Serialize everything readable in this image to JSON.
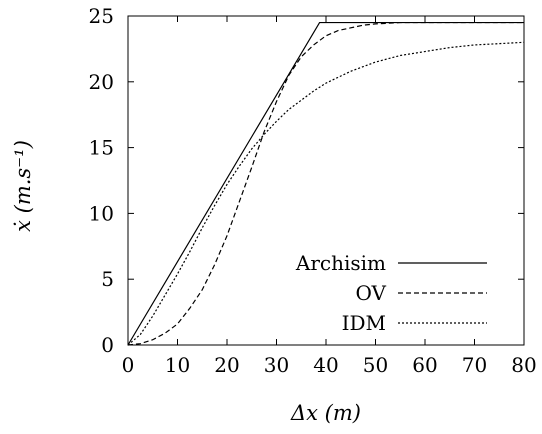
{
  "chart_data": {
    "type": "line",
    "title": "",
    "xlabel": "Δx (m)",
    "ylabel": "ẋ (m.s⁻¹)",
    "xlim": [
      0,
      80
    ],
    "ylim": [
      0,
      25
    ],
    "xticks": [
      "0",
      "10",
      "20",
      "30",
      "40",
      "50",
      "60",
      "70",
      "80"
    ],
    "yticks": [
      "0",
      "5",
      "10",
      "15",
      "20",
      "25"
    ],
    "grid": false,
    "legend_position": "bottom-right",
    "series": [
      {
        "name": "Archisim",
        "style": "solid",
        "x": [
          0,
          38.7,
          80
        ],
        "y": [
          0,
          24.5,
          24.5
        ]
      },
      {
        "name": "OV",
        "style": "dashed",
        "x": [
          0,
          2.5,
          5,
          7.5,
          10,
          12.5,
          15,
          17.5,
          20,
          22.5,
          25,
          27.5,
          30,
          32.5,
          35,
          37.5,
          40,
          42.5,
          45,
          47.5,
          50,
          55,
          60,
          65,
          70,
          75,
          80
        ],
        "y": [
          0.0,
          0.1,
          0.4,
          0.9,
          1.6,
          2.8,
          4.2,
          6.1,
          8.3,
          10.9,
          13.5,
          16.2,
          18.5,
          20.5,
          21.9,
          22.8,
          23.5,
          23.9,
          24.1,
          24.3,
          24.4,
          24.5,
          24.5,
          24.5,
          24.5,
          24.5,
          24.5
        ]
      },
      {
        "name": "IDM",
        "style": "dotted",
        "x": [
          0,
          2.5,
          5,
          7.5,
          10,
          12.5,
          15,
          17.5,
          20,
          22.5,
          25,
          27.5,
          30,
          32.5,
          35,
          37.5,
          40,
          45,
          50,
          55,
          60,
          65,
          70,
          75,
          80
        ],
        "y": [
          0.0,
          0.8,
          2.2,
          3.8,
          5.4,
          7.1,
          8.9,
          10.6,
          12.2,
          13.6,
          14.9,
          16.0,
          17.0,
          17.9,
          18.6,
          19.3,
          19.9,
          20.8,
          21.5,
          22.0,
          22.3,
          22.6,
          22.8,
          22.9,
          23.0
        ]
      }
    ]
  }
}
